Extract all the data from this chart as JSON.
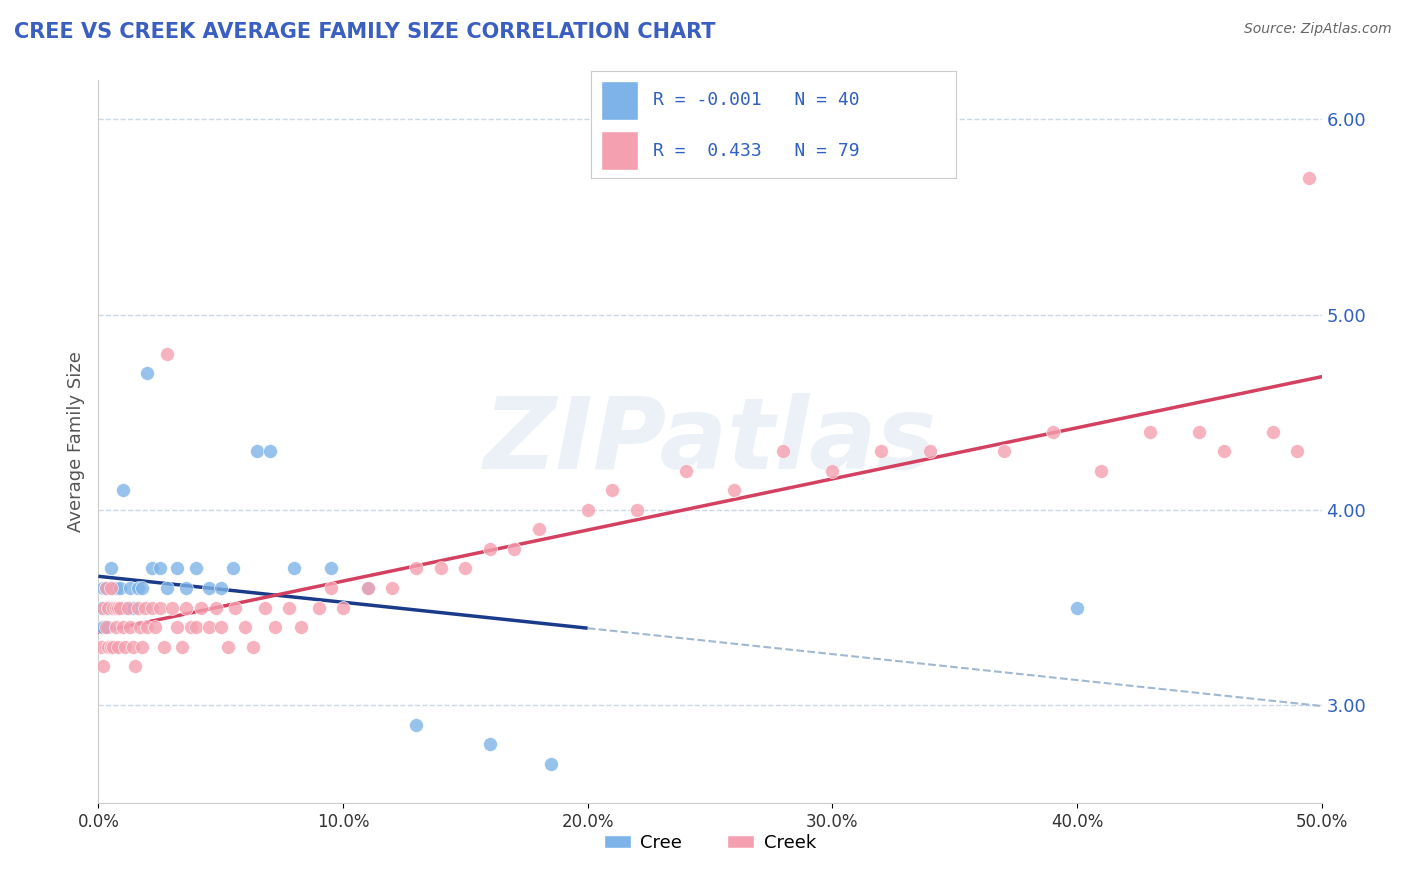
{
  "title": "CREE VS CREEK AVERAGE FAMILY SIZE CORRELATION CHART",
  "source": "Source: ZipAtlas.com",
  "ylabel": "Average Family Size",
  "xlim": [
    0.0,
    0.5
  ],
  "ylim": [
    2.5,
    6.2
  ],
  "yticks": [
    3.0,
    4.0,
    5.0,
    6.0
  ],
  "xticks": [
    0.0,
    0.1,
    0.2,
    0.3,
    0.4,
    0.5
  ],
  "xtick_labels": [
    "0.0%",
    "10.0%",
    "20.0%",
    "30.0%",
    "40.0%",
    "50.0%"
  ],
  "cree_color": "#7db3e8",
  "creek_color": "#f4a0b0",
  "cree_line_color": "#1a3a8a",
  "creek_line_color": "#d44060",
  "dashed_line_color": "#a0b8d0",
  "R_cree": -0.001,
  "N_cree": 40,
  "R_creek": 0.433,
  "N_creek": 79,
  "legend_text_color": "#3060c0",
  "title_color": "#3a5fc0",
  "watermark": "ZIPatlas",
  "background_color": "#ffffff",
  "grid_color": "#c8d8e8",
  "cree_x": [
    0.001,
    0.002,
    0.002,
    0.003,
    0.003,
    0.004,
    0.004,
    0.005,
    0.005,
    0.006,
    0.006,
    0.007,
    0.007,
    0.008,
    0.009,
    0.01,
    0.011,
    0.013,
    0.014,
    0.016,
    0.018,
    0.02,
    0.022,
    0.025,
    0.028,
    0.032,
    0.036,
    0.04,
    0.045,
    0.05,
    0.055,
    0.065,
    0.07,
    0.08,
    0.095,
    0.11,
    0.13,
    0.16,
    0.185,
    0.4
  ],
  "cree_y": [
    3.5,
    3.6,
    3.4,
    3.5,
    3.6,
    3.5,
    3.4,
    3.7,
    3.5,
    3.6,
    3.5,
    3.5,
    3.6,
    3.5,
    3.6,
    4.1,
    3.5,
    3.6,
    3.5,
    3.6,
    3.6,
    4.7,
    3.7,
    3.7,
    3.6,
    3.7,
    3.6,
    3.7,
    3.6,
    3.6,
    3.7,
    4.3,
    4.3,
    3.7,
    3.7,
    3.6,
    2.9,
    2.8,
    2.7,
    3.5
  ],
  "creek_x": [
    0.001,
    0.002,
    0.002,
    0.003,
    0.003,
    0.004,
    0.004,
    0.005,
    0.005,
    0.006,
    0.006,
    0.007,
    0.007,
    0.008,
    0.008,
    0.009,
    0.01,
    0.011,
    0.012,
    0.013,
    0.014,
    0.015,
    0.016,
    0.017,
    0.018,
    0.019,
    0.02,
    0.022,
    0.023,
    0.025,
    0.027,
    0.028,
    0.03,
    0.032,
    0.034,
    0.036,
    0.038,
    0.04,
    0.042,
    0.045,
    0.048,
    0.05,
    0.053,
    0.056,
    0.06,
    0.063,
    0.068,
    0.072,
    0.078,
    0.083,
    0.09,
    0.095,
    0.1,
    0.11,
    0.12,
    0.13,
    0.14,
    0.15,
    0.16,
    0.17,
    0.18,
    0.2,
    0.21,
    0.22,
    0.24,
    0.26,
    0.28,
    0.3,
    0.32,
    0.34,
    0.37,
    0.39,
    0.41,
    0.43,
    0.45,
    0.46,
    0.48,
    0.49,
    0.495
  ],
  "creek_y": [
    3.3,
    3.5,
    3.2,
    3.6,
    3.4,
    3.5,
    3.3,
    3.6,
    3.3,
    3.5,
    3.3,
    3.5,
    3.4,
    3.5,
    3.3,
    3.5,
    3.4,
    3.3,
    3.5,
    3.4,
    3.3,
    3.2,
    3.5,
    3.4,
    3.3,
    3.5,
    3.4,
    3.5,
    3.4,
    3.5,
    3.3,
    4.8,
    3.5,
    3.4,
    3.3,
    3.5,
    3.4,
    3.4,
    3.5,
    3.4,
    3.5,
    3.4,
    3.3,
    3.5,
    3.4,
    3.3,
    3.5,
    3.4,
    3.5,
    3.4,
    3.5,
    3.6,
    3.5,
    3.6,
    3.6,
    3.7,
    3.7,
    3.7,
    3.8,
    3.8,
    3.9,
    4.0,
    4.1,
    4.0,
    4.2,
    4.1,
    4.3,
    4.2,
    4.3,
    4.3,
    4.3,
    4.4,
    4.2,
    4.4,
    4.4,
    4.3,
    4.4,
    4.3,
    5.7
  ]
}
